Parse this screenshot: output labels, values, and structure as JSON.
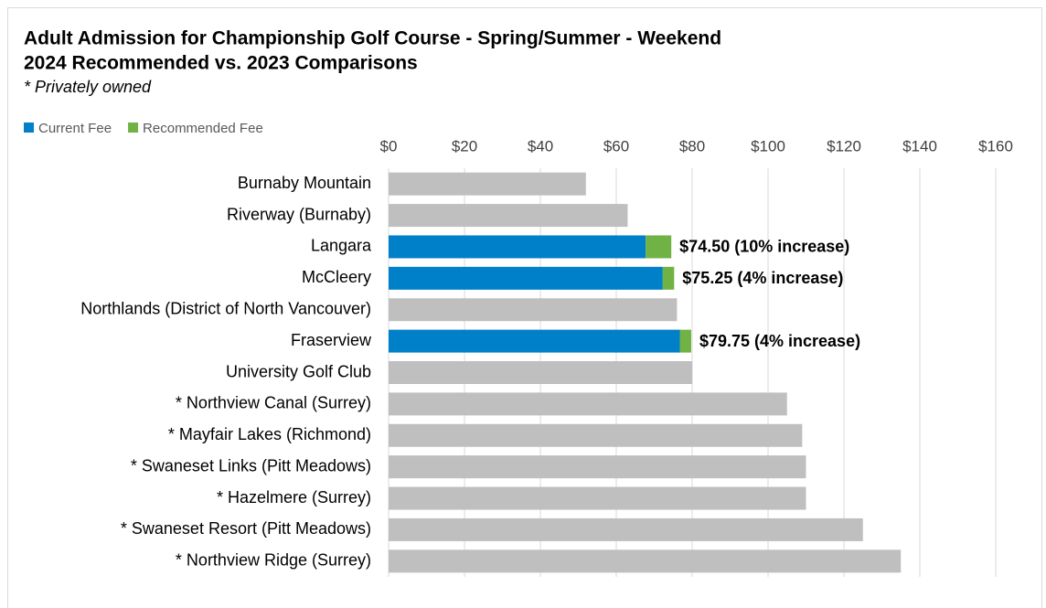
{
  "chart_data": {
    "type": "bar",
    "orientation": "horizontal",
    "stacked": true,
    "title": "Adult Admission for Championship Golf Course - Spring/Summer - Weekend",
    "subtitle": "2024 Recommended vs. 2023 Comparisons",
    "note": "* Privately owned",
    "categories": [
      "Burnaby Mountain",
      "Riverway (Burnaby)",
      "Langara",
      "McCleery",
      "Northlands (District of North Vancouver)",
      "Fraserview",
      "University Golf Club",
      "* Northview Canal (Surrey)",
      "* Mayfair Lakes (Richmond)",
      "* Swaneset Links (Pitt Meadows)",
      "* Hazelmere (Surrey)",
      "* Swaneset Resort (Pitt Meadows)",
      "* Northview Ridge (Surrey)"
    ],
    "series": [
      {
        "color": "#bfbfbf",
        "values": [
          52,
          63,
          null,
          null,
          76,
          null,
          80,
          105,
          109,
          110,
          110,
          125,
          135
        ]
      },
      {
        "name": "Current Fee",
        "color": "#0080c8",
        "values": [
          null,
          null,
          67.75,
          72.25,
          null,
          76.75,
          null,
          null,
          null,
          null,
          null,
          null,
          null
        ]
      },
      {
        "name": "Recommended Fee",
        "color": "#70b244",
        "values": [
          null,
          null,
          6.75,
          3,
          null,
          3,
          null,
          null,
          null,
          null,
          null,
          null,
          null
        ]
      }
    ],
    "annotations": [
      null,
      null,
      "$74.50 (10% increase)",
      "$75.25 (4% increase)",
      null,
      "$79.75 (4% increase)",
      null,
      null,
      null,
      null,
      null,
      null,
      null
    ],
    "xlim": [
      0,
      160
    ],
    "xticks": [
      {
        "value": 0,
        "label": "$0"
      },
      {
        "value": 20,
        "label": "$20"
      },
      {
        "value": 40,
        "label": "$40"
      },
      {
        "value": 60,
        "label": "$60"
      },
      {
        "value": 80,
        "label": "$80"
      },
      {
        "value": 100,
        "label": "$100"
      },
      {
        "value": 120,
        "label": "$120"
      },
      {
        "value": 140,
        "label": "$140"
      },
      {
        "value": 160,
        "label": "$160"
      }
    ],
    "grid": true,
    "legend": "top-left"
  }
}
